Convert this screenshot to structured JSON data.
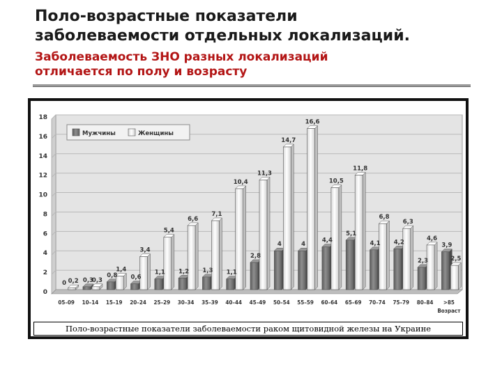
{
  "header": {
    "title_lines": [
      "Поло-возрастные показатели",
      "заболеваемости отдельных локализаций."
    ],
    "subtitle_lines": [
      "Заболеваемость ЗНО разных локализаций",
      "отличается по полу и возрасту"
    ]
  },
  "caption": "Поло-возрастные показатели заболеваемости раком щитовидной железы на Украине",
  "chart_data": {
    "type": "bar",
    "categories": [
      "05–09",
      "10–14",
      "15–19",
      "20–24",
      "25–29",
      "30–34",
      "35–39",
      "40–44",
      "45–49",
      "50–54",
      "55–59",
      "60–64",
      "65–69",
      "70–74",
      "75–79",
      "80–84",
      ">85"
    ],
    "xlabel": "Возраст",
    "ylabel": "",
    "ylim": [
      0,
      18
    ],
    "yticks": [
      0,
      2,
      4,
      6,
      8,
      10,
      12,
      14,
      16,
      18
    ],
    "grid": true,
    "legend_position": "top-left",
    "series": [
      {
        "name": "Мужчины",
        "color": "#7a7a7a",
        "values": [
          0,
          0.3,
          0.8,
          0.6,
          1.1,
          1.2,
          1.3,
          1.1,
          2.8,
          4,
          4,
          4.4,
          5.1,
          4.1,
          4.2,
          2.3,
          3.9
        ],
        "labels": [
          "0",
          "0,3",
          "0,8",
          "0,6",
          "1,1",
          "1,2",
          "1,3",
          "1,1",
          "2,8",
          "4",
          "4",
          "4,4",
          "5,1",
          "4,1",
          "4,2",
          "2,3",
          "3,9"
        ]
      },
      {
        "name": "Женщины",
        "color": "#f4f4f4",
        "values": [
          0.2,
          0.3,
          1.4,
          3.4,
          5.4,
          6.6,
          7.1,
          10.4,
          11.3,
          14.7,
          16.6,
          10.5,
          11.8,
          6.8,
          6.3,
          4.6,
          2.5
        ],
        "labels": [
          "0,2",
          "0,3",
          "1,4",
          "3,4",
          "5,4",
          "6,6",
          "7,1",
          "10,4",
          "11,3",
          "14,7",
          "16,6",
          "10,5",
          "11,8",
          "6,8",
          "6,3",
          "4,6",
          "2,5"
        ]
      }
    ]
  }
}
